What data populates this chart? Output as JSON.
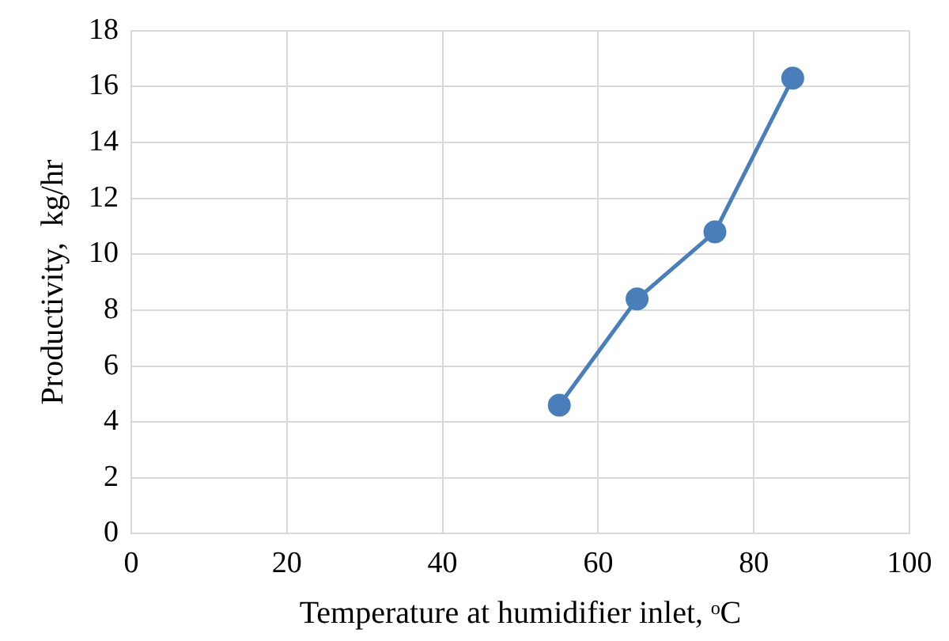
{
  "chart_data": {
    "type": "line",
    "xlabel": "Temperature at humidifier inlet, ᵒC",
    "ylabel": "Productivity,  kg/hr",
    "x": [
      55,
      65,
      75,
      85
    ],
    "series": [
      {
        "color": "#4a7ebb",
        "values": [
          4.6,
          8.4,
          10.8,
          16.3
        ]
      }
    ],
    "xlim": [
      0,
      100
    ],
    "xticks": [
      0,
      20,
      40,
      60,
      80,
      100
    ],
    "ylim": [
      0,
      18
    ],
    "yticks": [
      0,
      2,
      4,
      6,
      8,
      10,
      12,
      14,
      16,
      18
    ],
    "grid": true,
    "marker": "circle",
    "line_style": "solid",
    "legend": false
  }
}
